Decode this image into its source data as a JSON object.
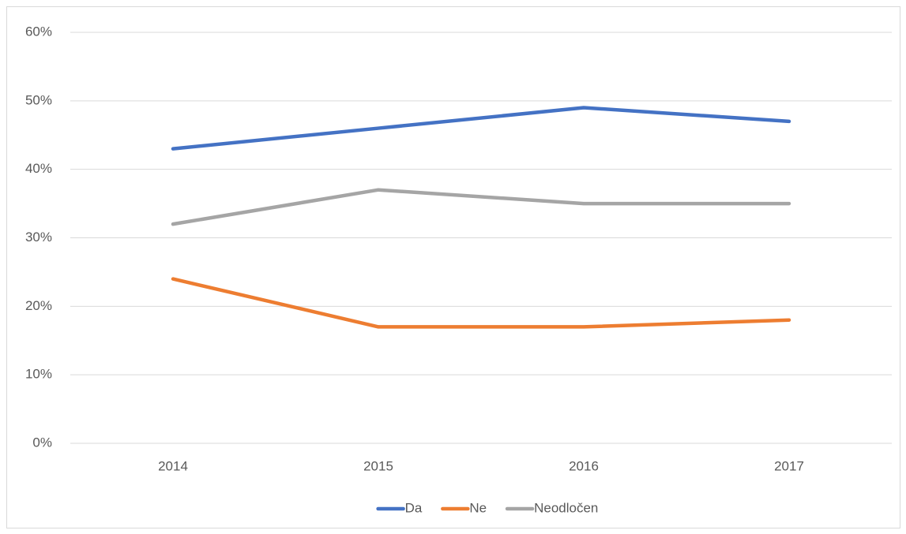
{
  "chart_data": {
    "type": "line",
    "categories": [
      "2014",
      "2015",
      "2016",
      "2017"
    ],
    "series": [
      {
        "name": "Da",
        "color": "#4472c4",
        "values": [
          43,
          46,
          49,
          47
        ]
      },
      {
        "name": "Ne",
        "color": "#ed7d31",
        "values": [
          24,
          17,
          17,
          18
        ]
      },
      {
        "name": "Neodločen",
        "color": "#a5a5a5",
        "values": [
          32,
          37,
          35,
          35
        ]
      }
    ],
    "ylim": [
      0,
      60
    ],
    "yticks": [
      {
        "value": 0,
        "label": "0%"
      },
      {
        "value": 10,
        "label": "10%"
      },
      {
        "value": 20,
        "label": "20%"
      },
      {
        "value": 30,
        "label": "30%"
      },
      {
        "value": 40,
        "label": "40%"
      },
      {
        "value": 50,
        "label": "50%"
      },
      {
        "value": 60,
        "label": "60%"
      }
    ],
    "grid": true,
    "legend": "bottom"
  }
}
